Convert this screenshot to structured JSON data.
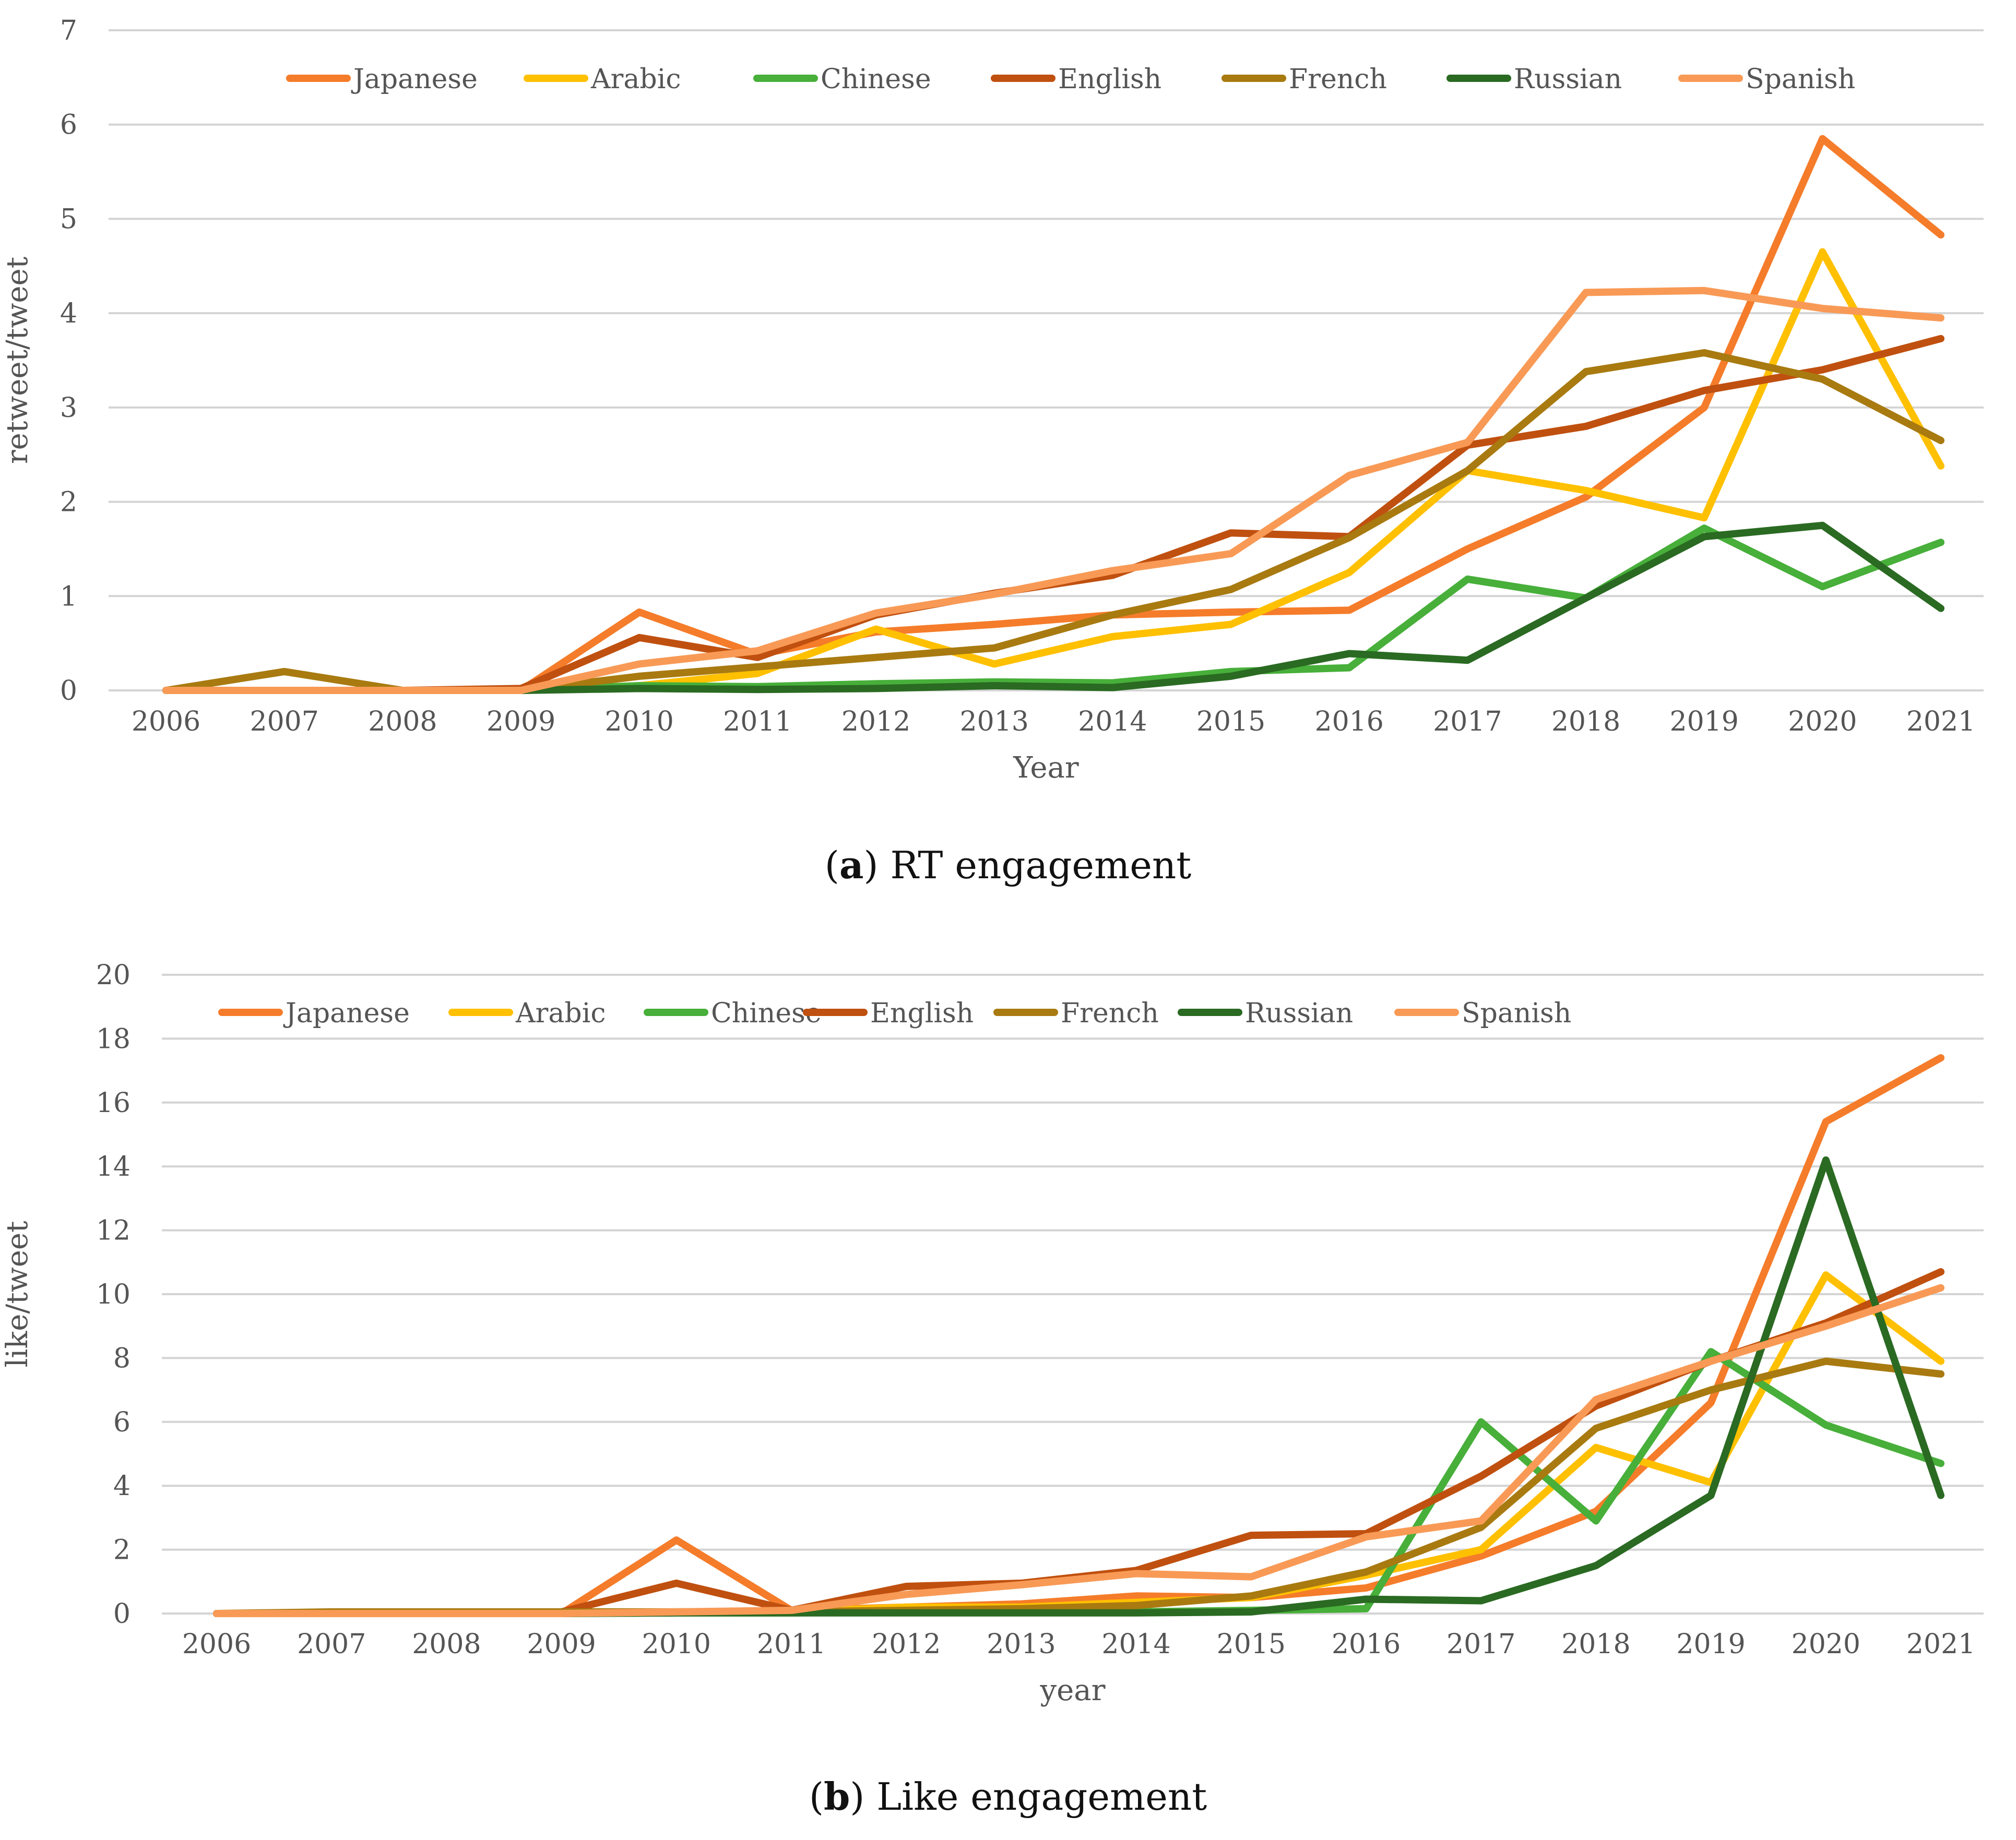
{
  "series_colors": {
    "Japanese": "#F57C2A",
    "Arabic": "#FFC000",
    "Chinese": "#47AF3A",
    "English": "#C0500F",
    "French": "#A87A10",
    "Russian": "#2A6A22",
    "Spanish": "#F89A56"
  },
  "captions": {
    "a_letter": "a",
    "a_text": "RT engagement",
    "b_letter": "b",
    "b_text": "Like engagement"
  },
  "chart_data": [
    {
      "id": "a",
      "type": "line",
      "title": "(a) RT engagement",
      "xlabel": "Year",
      "ylabel": "retweet/tweet",
      "ylim": [
        0,
        7
      ],
      "yticks": [
        "0",
        "1",
        "2",
        "3",
        "4",
        "5",
        "6",
        "7"
      ],
      "legend_position": "top",
      "categories": [
        "2006",
        "2007",
        "2008",
        "2009",
        "2010",
        "2011",
        "2012",
        "2013",
        "2014",
        "2015",
        "2016",
        "2017",
        "2018",
        "2019",
        "2020",
        "2021"
      ],
      "series": [
        {
          "name": "Japanese",
          "values": [
            0,
            0,
            0,
            0,
            0.83,
            0.38,
            0.62,
            0.7,
            0.8,
            0.83,
            0.85,
            1.5,
            2.05,
            3.0,
            5.85,
            4.83
          ]
        },
        {
          "name": "Arabic",
          "values": [
            0,
            0,
            0,
            0,
            0.05,
            0.18,
            0.65,
            0.28,
            0.57,
            0.7,
            1.25,
            2.33,
            2.12,
            1.83,
            4.65,
            2.38
          ]
        },
        {
          "name": "Chinese",
          "values": [
            0,
            0,
            0,
            0,
            0.05,
            0.04,
            0.07,
            0.09,
            0.08,
            0.2,
            0.24,
            1.18,
            0.98,
            1.72,
            1.1,
            1.57
          ]
        },
        {
          "name": "English",
          "values": [
            0,
            0,
            0,
            0.02,
            0.56,
            0.35,
            0.8,
            1.03,
            1.22,
            1.67,
            1.63,
            2.6,
            2.8,
            3.18,
            3.4,
            3.73
          ]
        },
        {
          "name": "French",
          "values": [
            0,
            0.2,
            0,
            0,
            0.15,
            0.25,
            0.35,
            0.45,
            0.8,
            1.07,
            1.62,
            2.33,
            3.38,
            3.58,
            3.3,
            2.65
          ]
        },
        {
          "name": "Russian",
          "values": [
            0,
            0,
            0,
            0,
            0.02,
            0.01,
            0.02,
            0.05,
            0.03,
            0.15,
            0.39,
            0.32,
            0.98,
            1.63,
            1.75,
            0.87
          ]
        },
        {
          "name": "Spanish",
          "values": [
            0,
            0,
            0,
            0,
            0.28,
            0.42,
            0.82,
            1.02,
            1.27,
            1.45,
            2.28,
            2.63,
            4.22,
            4.24,
            4.05,
            3.95
          ]
        }
      ]
    },
    {
      "id": "b",
      "type": "line",
      "title": "(b) Like engagement",
      "xlabel": "year",
      "ylabel": "like/tweet",
      "ylim": [
        0,
        20
      ],
      "yticks": [
        "0",
        "2",
        "4",
        "6",
        "8",
        "10",
        "12",
        "14",
        "16",
        "18",
        "20"
      ],
      "legend_position": "top",
      "categories": [
        "2006",
        "2007",
        "2008",
        "2009",
        "2010",
        "2011",
        "2012",
        "2013",
        "2014",
        "2015",
        "2016",
        "2017",
        "2018",
        "2019",
        "2020",
        "2021"
      ],
      "series": [
        {
          "name": "Japanese",
          "values": [
            0,
            0,
            0,
            0,
            2.3,
            0.1,
            0.2,
            0.3,
            0.55,
            0.5,
            0.8,
            1.8,
            3.2,
            6.6,
            15.4,
            17.4
          ]
        },
        {
          "name": "Arabic",
          "values": [
            0,
            0,
            0,
            0,
            0.05,
            0.05,
            0.2,
            0.2,
            0.35,
            0.5,
            1.2,
            2.0,
            5.2,
            4.1,
            10.6,
            7.9
          ]
        },
        {
          "name": "Chinese",
          "values": [
            0,
            0,
            0,
            0,
            0.02,
            0.02,
            0.05,
            0.05,
            0.05,
            0.1,
            0.15,
            6.0,
            2.9,
            8.2,
            5.9,
            4.7
          ]
        },
        {
          "name": "English",
          "values": [
            0,
            0,
            0.02,
            0.05,
            0.95,
            0.1,
            0.85,
            0.95,
            1.35,
            2.45,
            2.5,
            4.3,
            6.5,
            7.9,
            9.1,
            10.7
          ]
        },
        {
          "name": "French",
          "values": [
            0,
            0.05,
            0.05,
            0.05,
            0.05,
            0.05,
            0.1,
            0.15,
            0.25,
            0.55,
            1.3,
            2.7,
            5.8,
            7.0,
            7.9,
            7.5
          ]
        },
        {
          "name": "Russian",
          "values": [
            0,
            0,
            0,
            0,
            0.02,
            0.02,
            0.02,
            0.02,
            0.02,
            0.05,
            0.45,
            0.4,
            1.5,
            3.7,
            14.2,
            3.7
          ]
        },
        {
          "name": "Spanish",
          "values": [
            0,
            0,
            0,
            0,
            0.05,
            0.1,
            0.6,
            0.9,
            1.25,
            1.15,
            2.4,
            2.9,
            6.7,
            7.9,
            9.0,
            10.2
          ]
        }
      ]
    }
  ]
}
